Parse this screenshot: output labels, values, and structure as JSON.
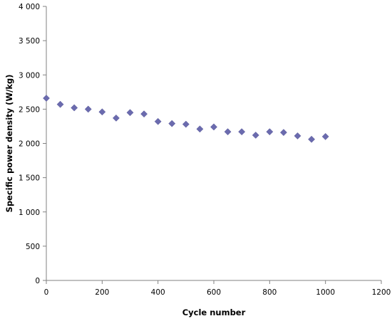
{
  "chart_data": {
    "type": "scatter",
    "title": "",
    "xlabel": "Cycle number",
    "ylabel": "Specific power density (W/kg)",
    "xlim": [
      0,
      1200
    ],
    "ylim": [
      0,
      4000
    ],
    "x_ticks": [
      0,
      200,
      400,
      600,
      800,
      1000,
      1200
    ],
    "x_tick_labels": [
      "0",
      "200",
      "400",
      "600",
      "800",
      "1000",
      "1200"
    ],
    "y_ticks": [
      0,
      500,
      1000,
      1500,
      2000,
      2500,
      3000,
      3500,
      4000
    ],
    "y_tick_labels": [
      "0",
      "500",
      "1 000",
      "1 500",
      "2 000",
      "2 500",
      "3 000",
      "3 500",
      "4 000"
    ],
    "grid": false,
    "legend": "none",
    "marker": "diamond",
    "marker_color": "#6B6BAE",
    "x": [
      0,
      50,
      100,
      150,
      200,
      250,
      300,
      350,
      400,
      450,
      500,
      550,
      600,
      650,
      700,
      750,
      800,
      850,
      900,
      950,
      1000
    ],
    "y": [
      2660,
      2570,
      2520,
      2500,
      2460,
      2370,
      2450,
      2430,
      2320,
      2290,
      2280,
      2210,
      2240,
      2170,
      2170,
      2120,
      2170,
      2160,
      2110,
      2060,
      2100
    ]
  }
}
